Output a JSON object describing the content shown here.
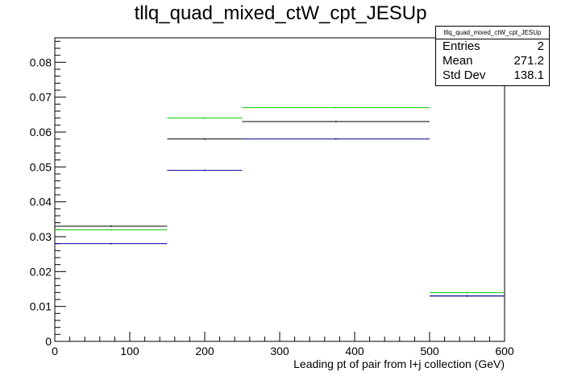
{
  "chart_data": {
    "type": "histogram",
    "title": "tllq_quad_mixed_ctW_cpt_JESUp",
    "xlabel": "Leading pt of pair from l+j collection (GeV)",
    "ylabel": "",
    "xlim": [
      0,
      600
    ],
    "ylim": [
      0,
      0.087
    ],
    "x_ticks": [
      0,
      100,
      200,
      300,
      400,
      500,
      600
    ],
    "y_ticks": [
      0,
      0.01,
      0.02,
      0.03,
      0.04,
      0.05,
      0.06,
      0.07,
      0.08
    ],
    "bin_edges": [
      0,
      150,
      250,
      500,
      600
    ],
    "series": [
      {
        "color": "#000000",
        "values": [
          0.033,
          0.058,
          0.063,
          0.013
        ]
      },
      {
        "color": "#00cc00",
        "values": [
          0.032,
          0.064,
          0.067,
          0.014
        ]
      },
      {
        "color": "#000099",
        "values": [
          0.028,
          0.049,
          0.058,
          0.013
        ]
      }
    ],
    "grid": false,
    "stats": {
      "title": "tllq_quad_mixed_ctW_cpt_JESUp",
      "rows": [
        {
          "label": "Entries",
          "value": "2"
        },
        {
          "label": "Mean",
          "value": "271.2"
        },
        {
          "label": "Std Dev",
          "value": "138.1"
        }
      ]
    }
  }
}
